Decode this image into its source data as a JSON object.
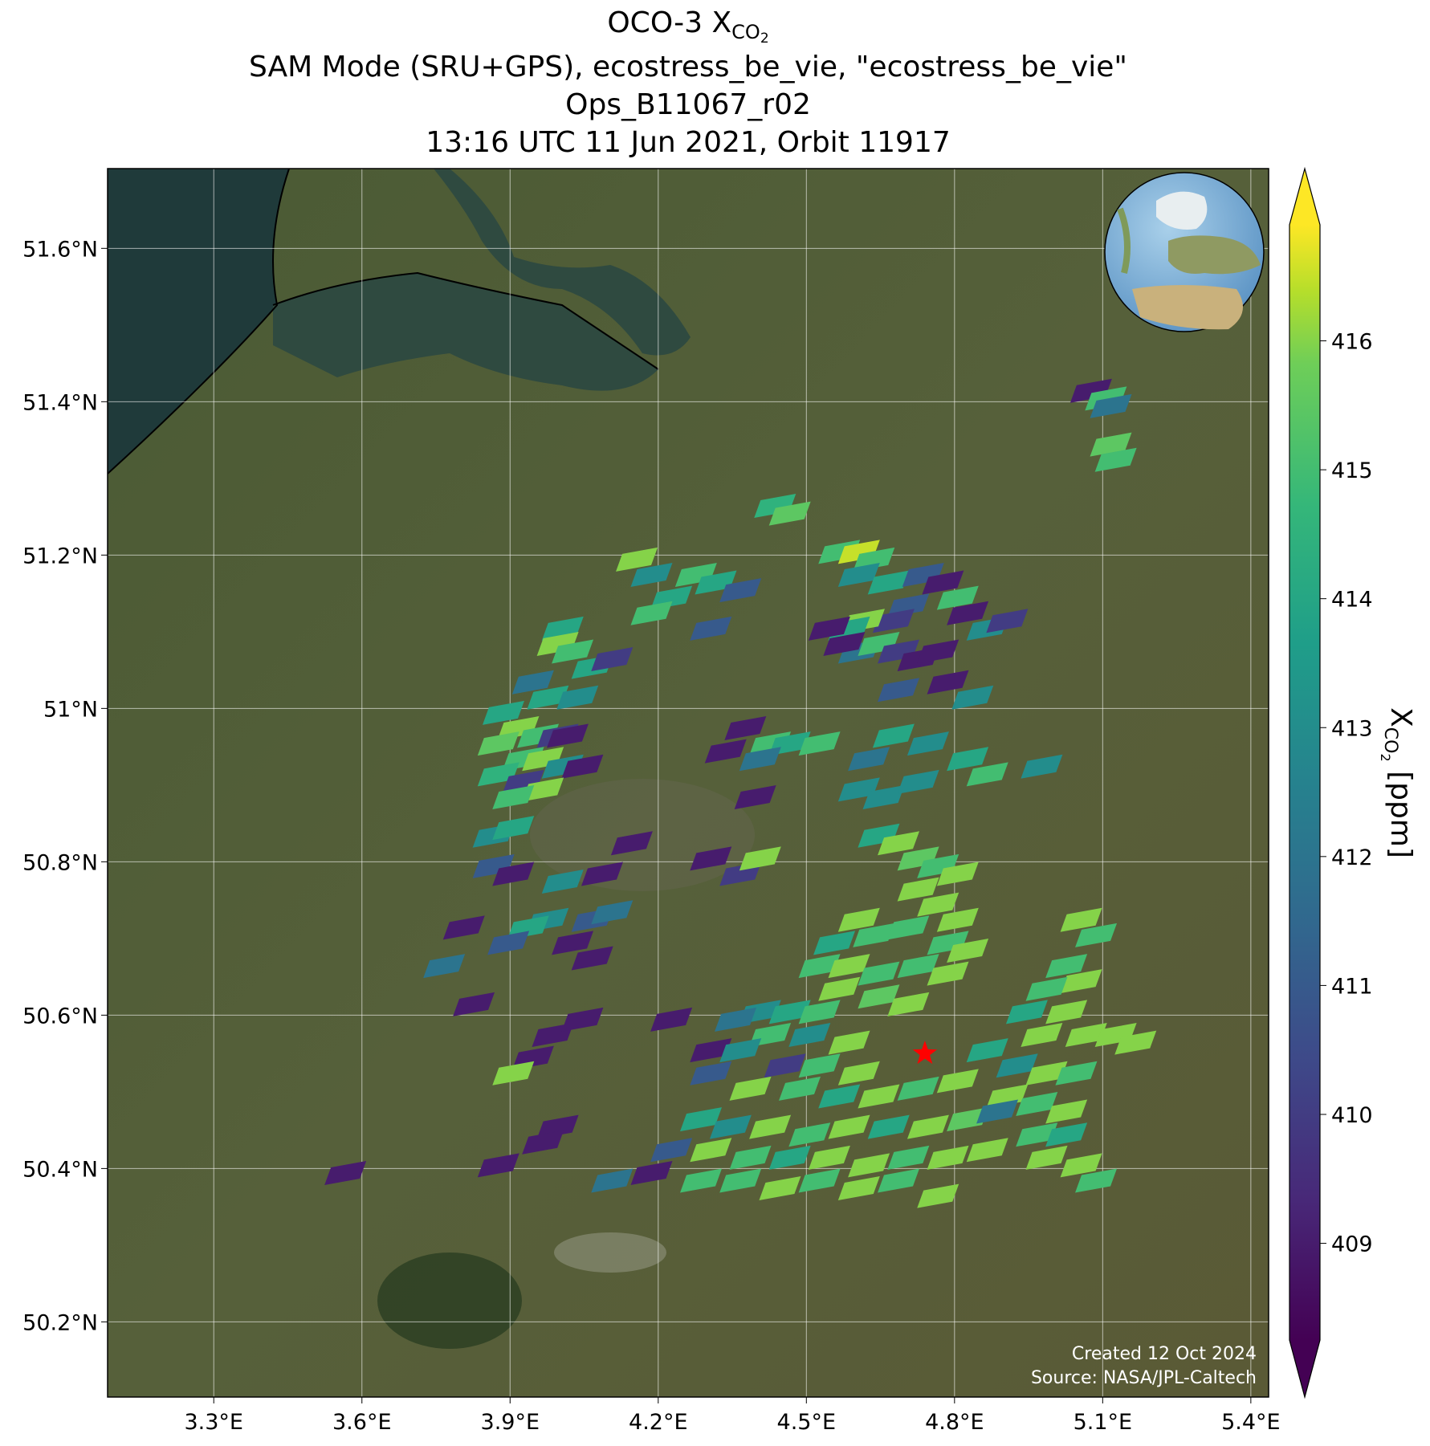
{
  "title": {
    "prefix": "OCO-3 X",
    "sub": "CO",
    "subsub": "2",
    "lines": [
      "SAM Mode (SRU+GPS), ecostress_be_vie, \"ecostress_be_vie\"",
      "Ops_B11067_r02",
      "13:16 UTC 11 Jun 2021, Orbit 11917"
    ]
  },
  "xlim": [
    3.085,
    5.436
  ],
  "ylim": [
    50.102,
    51.704
  ],
  "xticks": [
    {
      "value": 3.3,
      "label": "3.3°E"
    },
    {
      "value": 3.6,
      "label": "3.6°E"
    },
    {
      "value": 3.9,
      "label": "3.9°E"
    },
    {
      "value": 4.2,
      "label": "4.2°E"
    },
    {
      "value": 4.5,
      "label": "4.5°E"
    },
    {
      "value": 4.8,
      "label": "4.8°E"
    },
    {
      "value": 5.1,
      "label": "5.1°E"
    },
    {
      "value": 5.4,
      "label": "5.4°E"
    }
  ],
  "yticks": [
    {
      "value": 50.2,
      "label": "50.2°N"
    },
    {
      "value": 50.4,
      "label": "50.4°N"
    },
    {
      "value": 50.6,
      "label": "50.6°N"
    },
    {
      "value": 50.8,
      "label": "50.8°N"
    },
    {
      "value": 51,
      "label": "51°N"
    },
    {
      "value": 51.2,
      "label": "51.2°N"
    },
    {
      "value": 51.4,
      "label": "51.4°N"
    },
    {
      "value": 51.6,
      "label": "51.6°N"
    }
  ],
  "grid": true,
  "colorbar": {
    "colormap": "viridis",
    "clim": [
      408.25,
      416.9
    ],
    "extend": "both",
    "ticks": [
      409,
      410,
      411,
      412,
      413,
      414,
      415,
      416
    ],
    "label": {
      "prefix": "X",
      "sub": "CO",
      "subsub": "2",
      "suffix": " [ppm]"
    }
  },
  "target": {
    "lon": 4.74,
    "lat": 50.55,
    "color": "#ff0000"
  },
  "credits": [
    "Created 12 Oct 2024",
    "Source: NASA/JPL-Caltech"
  ],
  "soundings": [
    [
      5.07,
      51.41,
      409
    ],
    [
      5.1,
      51.4,
      415
    ],
    [
      5.11,
      51.39,
      412
    ],
    [
      5.11,
      51.34,
      415.5
    ],
    [
      5.12,
      51.32,
      415
    ],
    [
      4.43,
      51.26,
      414.5
    ],
    [
      4.46,
      51.25,
      415.5
    ],
    [
      4.56,
      51.2,
      415
    ],
    [
      4.6,
      51.2,
      416.5
    ],
    [
      4.63,
      51.19,
      415
    ],
    [
      4.6,
      51.17,
      413
    ],
    [
      4.66,
      51.16,
      414
    ],
    [
      4.73,
      51.17,
      411
    ],
    [
      4.77,
      51.16,
      409
    ],
    [
      4.8,
      51.14,
      415
    ],
    [
      4.7,
      51.13,
      411
    ],
    [
      4.67,
      51.11,
      410
    ],
    [
      4.61,
      51.11,
      416
    ],
    [
      4.58,
      51.1,
      414
    ],
    [
      4.54,
      51.1,
      409
    ],
    [
      4.6,
      51.07,
      412
    ],
    [
      4.64,
      51.08,
      415
    ],
    [
      4.68,
      51.07,
      410
    ],
    [
      4.72,
      51.06,
      409
    ],
    [
      4.76,
      51.07,
      409
    ],
    [
      4.82,
      51.12,
      409
    ],
    [
      4.86,
      51.1,
      413
    ],
    [
      4.9,
      51.11,
      410
    ],
    [
      4.68,
      51.02,
      411
    ],
    [
      4.78,
      51.03,
      409
    ],
    [
      4.83,
      51.01,
      413
    ],
    [
      4.57,
      51.08,
      409
    ],
    [
      4.0,
      51.1,
      414
    ],
    [
      3.99,
      51.08,
      416
    ],
    [
      4.02,
      51.07,
      415
    ],
    [
      4.06,
      51.05,
      414
    ],
    [
      4.1,
      51.06,
      410
    ],
    [
      3.94,
      51.03,
      412
    ],
    [
      3.97,
      51.01,
      414
    ],
    [
      4.03,
      51.01,
      413
    ],
    [
      3.88,
      50.99,
      414
    ],
    [
      3.91,
      50.97,
      416
    ],
    [
      3.95,
      50.96,
      415
    ],
    [
      3.99,
      50.96,
      410
    ],
    [
      3.87,
      50.95,
      415.5
    ],
    [
      3.92,
      50.93,
      415
    ],
    [
      3.96,
      50.93,
      416
    ],
    [
      4.0,
      50.92,
      413
    ],
    [
      4.04,
      50.92,
      409
    ],
    [
      3.87,
      50.91,
      414.5
    ],
    [
      3.92,
      50.9,
      410
    ],
    [
      3.96,
      50.89,
      416
    ],
    [
      3.9,
      50.88,
      415
    ],
    [
      3.86,
      50.83,
      413
    ],
    [
      3.9,
      50.84,
      414
    ],
    [
      4.01,
      50.96,
      409
    ],
    [
      4.15,
      51.19,
      416
    ],
    [
      4.18,
      51.17,
      413
    ],
    [
      4.27,
      51.17,
      415
    ],
    [
      4.31,
      51.16,
      414
    ],
    [
      4.36,
      51.15,
      411
    ],
    [
      4.22,
      51.14,
      414
    ],
    [
      4.18,
      51.12,
      415
    ],
    [
      4.3,
      51.1,
      411
    ],
    [
      4.37,
      50.97,
      409
    ],
    [
      4.42,
      50.95,
      415
    ],
    [
      4.46,
      50.95,
      414
    ],
    [
      4.4,
      50.93,
      412
    ],
    [
      4.33,
      50.94,
      409
    ],
    [
      4.39,
      50.88,
      409
    ],
    [
      4.52,
      50.95,
      415
    ],
    [
      4.62,
      50.93,
      412
    ],
    [
      4.67,
      50.96,
      414
    ],
    [
      4.74,
      50.95,
      413
    ],
    [
      4.82,
      50.93,
      414
    ],
    [
      4.86,
      50.91,
      415
    ],
    [
      4.97,
      50.92,
      413
    ],
    [
      4.6,
      50.89,
      413
    ],
    [
      4.65,
      50.88,
      413
    ],
    [
      4.72,
      50.9,
      413
    ],
    [
      3.86,
      50.79,
      411
    ],
    [
      3.9,
      50.78,
      409
    ],
    [
      4.0,
      50.77,
      413
    ],
    [
      4.08,
      50.78,
      409
    ],
    [
      4.14,
      50.82,
      409
    ],
    [
      4.3,
      50.8,
      409
    ],
    [
      4.36,
      50.78,
      410
    ],
    [
      4.4,
      50.8,
      416
    ],
    [
      3.97,
      50.72,
      413
    ],
    [
      4.06,
      50.72,
      411
    ],
    [
      4.1,
      50.73,
      412
    ],
    [
      3.93,
      50.71,
      414
    ],
    [
      3.89,
      50.69,
      411
    ],
    [
      4.02,
      50.69,
      409
    ],
    [
      4.06,
      50.67,
      409
    ],
    [
      3.8,
      50.71,
      409
    ],
    [
      3.76,
      50.66,
      412
    ],
    [
      3.82,
      50.61,
      409
    ],
    [
      3.98,
      50.57,
      409
    ],
    [
      4.04,
      50.59,
      409
    ],
    [
      3.94,
      50.54,
      409
    ],
    [
      3.9,
      50.52,
      416
    ],
    [
      4.22,
      50.59,
      409
    ],
    [
      3.99,
      50.45,
      409
    ],
    [
      3.96,
      50.43,
      409
    ],
    [
      3.87,
      50.4,
      409
    ],
    [
      3.56,
      50.39,
      409
    ],
    [
      4.64,
      50.83,
      414
    ],
    [
      4.68,
      50.82,
      416
    ],
    [
      4.72,
      50.8,
      415.5
    ],
    [
      4.76,
      50.79,
      415
    ],
    [
      4.8,
      50.78,
      416
    ],
    [
      4.72,
      50.76,
      416
    ],
    [
      4.76,
      50.74,
      416
    ],
    [
      4.8,
      50.72,
      416
    ],
    [
      4.6,
      50.72,
      416
    ],
    [
      4.55,
      50.69,
      414
    ],
    [
      4.63,
      50.7,
      415
    ],
    [
      4.7,
      50.71,
      415
    ],
    [
      4.78,
      50.69,
      415
    ],
    [
      4.82,
      50.68,
      416
    ],
    [
      4.52,
      50.66,
      415
    ],
    [
      4.58,
      50.66,
      416
    ],
    [
      4.64,
      50.65,
      415
    ],
    [
      4.72,
      50.66,
      415
    ],
    [
      4.78,
      50.65,
      416
    ],
    [
      4.56,
      50.63,
      416
    ],
    [
      4.64,
      50.62,
      415.5
    ],
    [
      4.7,
      50.61,
      416
    ],
    [
      4.4,
      50.6,
      413
    ],
    [
      4.46,
      50.6,
      414
    ],
    [
      4.52,
      50.6,
      415
    ],
    [
      4.35,
      50.59,
      412
    ],
    [
      4.42,
      50.57,
      415
    ],
    [
      4.5,
      50.57,
      413
    ],
    [
      4.58,
      50.56,
      416
    ],
    [
      4.3,
      50.55,
      409
    ],
    [
      4.36,
      50.55,
      413
    ],
    [
      4.45,
      50.53,
      410
    ],
    [
      4.52,
      50.53,
      415
    ],
    [
      4.6,
      50.52,
      416
    ],
    [
      4.3,
      50.52,
      411
    ],
    [
      4.38,
      50.5,
      416
    ],
    [
      4.48,
      50.5,
      415
    ],
    [
      4.56,
      50.49,
      414
    ],
    [
      4.64,
      50.49,
      416
    ],
    [
      4.72,
      50.5,
      415
    ],
    [
      4.8,
      50.51,
      416
    ],
    [
      4.28,
      50.46,
      414
    ],
    [
      4.34,
      50.45,
      413
    ],
    [
      4.42,
      50.45,
      416
    ],
    [
      4.5,
      50.44,
      415
    ],
    [
      4.58,
      50.45,
      416
    ],
    [
      4.66,
      50.45,
      414
    ],
    [
      4.74,
      50.45,
      416
    ],
    [
      4.82,
      50.46,
      415.5
    ],
    [
      4.22,
      50.42,
      411
    ],
    [
      4.3,
      50.42,
      416
    ],
    [
      4.38,
      50.41,
      415
    ],
    [
      4.46,
      50.41,
      414
    ],
    [
      4.54,
      50.41,
      416
    ],
    [
      4.62,
      50.4,
      416
    ],
    [
      4.7,
      50.41,
      415
    ],
    [
      4.78,
      50.41,
      416
    ],
    [
      4.86,
      50.42,
      416
    ],
    [
      4.1,
      50.38,
      412
    ],
    [
      4.18,
      50.39,
      409
    ],
    [
      4.28,
      50.38,
      415
    ],
    [
      4.36,
      50.38,
      415
    ],
    [
      4.44,
      50.37,
      416
    ],
    [
      4.52,
      50.38,
      415
    ],
    [
      4.6,
      50.37,
      416
    ],
    [
      4.68,
      50.38,
      415
    ],
    [
      4.76,
      50.36,
      416
    ],
    [
      5.05,
      50.72,
      416
    ],
    [
      5.08,
      50.7,
      415
    ],
    [
      5.02,
      50.66,
      415
    ],
    [
      5.05,
      50.64,
      416
    ],
    [
      4.98,
      50.63,
      415
    ],
    [
      5.02,
      50.6,
      416
    ],
    [
      4.94,
      50.6,
      414
    ],
    [
      4.97,
      50.57,
      416
    ],
    [
      5.06,
      50.57,
      416
    ],
    [
      5.12,
      50.57,
      416
    ],
    [
      5.16,
      50.56,
      416
    ],
    [
      4.86,
      50.55,
      414
    ],
    [
      4.92,
      50.53,
      413
    ],
    [
      4.98,
      50.52,
      416
    ],
    [
      5.04,
      50.52,
      415
    ],
    [
      4.9,
      50.49,
      416
    ],
    [
      4.96,
      50.48,
      415
    ],
    [
      5.02,
      50.47,
      416
    ],
    [
      4.96,
      50.44,
      415
    ],
    [
      5.02,
      50.44,
      414
    ],
    [
      5.05,
      50.4,
      416
    ],
    [
      5.08,
      50.38,
      415
    ],
    [
      4.98,
      50.41,
      416
    ],
    [
      4.88,
      50.47,
      412
    ]
  ]
}
